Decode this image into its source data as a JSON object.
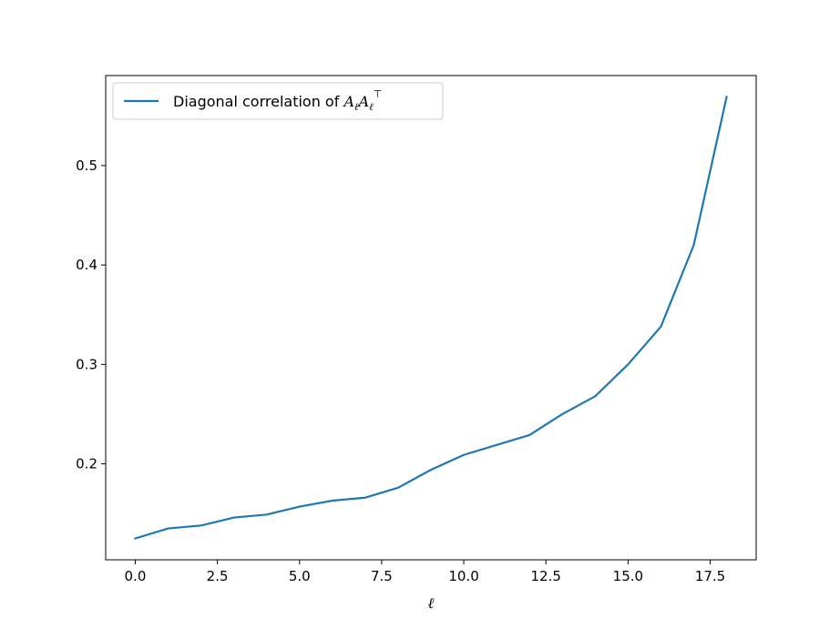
{
  "chart_data": {
    "type": "line",
    "title": "",
    "xlabel": "ℓ",
    "ylabel": "",
    "xlim": [
      -0.9,
      18.9
    ],
    "ylim": [
      0.1035,
      0.5905
    ],
    "xticks": [
      0.0,
      2.5,
      5.0,
      7.5,
      10.0,
      12.5,
      15.0,
      17.5
    ],
    "xtick_labels": [
      "0.0",
      "2.5",
      "5.0",
      "7.5",
      "10.0",
      "12.5",
      "15.0",
      "17.5"
    ],
    "yticks": [
      0.2,
      0.3,
      0.4,
      0.5
    ],
    "ytick_labels": [
      "0.2",
      "0.3",
      "0.4",
      "0.5"
    ],
    "grid": false,
    "legend_position": "top-left",
    "series": [
      {
        "name": "Diagonal correlation of A_ℓA_ℓ^⊤",
        "legend_parts": {
          "prefix": "Diagonal correlation of ",
          "A": "A",
          "sub": "ℓ",
          "sup": "⊤"
        },
        "color": "#1f77b4",
        "x": [
          0,
          1,
          2,
          3,
          4,
          5,
          6,
          7,
          8,
          9,
          10,
          11,
          12,
          13,
          14,
          15,
          16,
          17,
          18
        ],
        "y": [
          0.125,
          0.135,
          0.138,
          0.146,
          0.149,
          0.157,
          0.163,
          0.166,
          0.176,
          0.194,
          0.209,
          0.219,
          0.229,
          0.25,
          0.268,
          0.3,
          0.338,
          0.42,
          0.569
        ]
      }
    ]
  }
}
